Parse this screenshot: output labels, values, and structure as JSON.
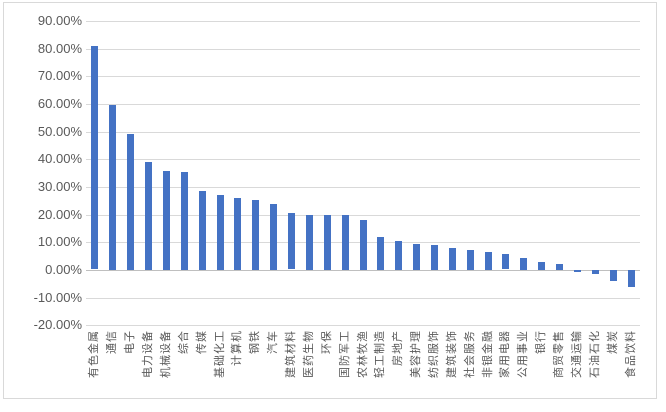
{
  "chart_data": {
    "type": "bar",
    "title": "",
    "xlabel": "",
    "ylabel": "",
    "unit": "%",
    "grid": true,
    "legend": false,
    "ylim": [
      -20,
      90
    ],
    "ytick_values": [
      90,
      80,
      70,
      60,
      50,
      40,
      30,
      20,
      10,
      0,
      -10,
      -20
    ],
    "ytick_labels": [
      "90.00%",
      "80.00%",
      "70.00%",
      "60.00%",
      "50.00%",
      "40.00%",
      "30.00%",
      "20.00%",
      "10.00%",
      "0.00%",
      "-10.00%",
      "-20.00%"
    ],
    "categories": [
      "有色金属",
      "通信",
      "电子",
      "电力设备",
      "机械设备",
      "综合",
      "传媒",
      "基础化工",
      "计算机",
      "钢铁",
      "汽车",
      "建筑材料",
      "医药生物",
      "环保",
      "国防军工",
      "农林牧渔",
      "轻工制造",
      "房地产",
      "美容护理",
      "纺织服饰",
      "建筑装饰",
      "社会服务",
      "非银金融",
      "家用电器",
      "公用事业",
      "银行",
      "商贸零售",
      "交通运输",
      "石油石化",
      "煤炭",
      "食品饮料"
    ],
    "values": [
      80.8,
      59.5,
      49.2,
      38.9,
      35.9,
      35.3,
      28.6,
      27.0,
      26.1,
      25.3,
      23.8,
      20.4,
      20.0,
      19.9,
      19.8,
      18.0,
      11.8,
      10.6,
      9.4,
      9.1,
      8.0,
      7.2,
      6.6,
      5.6,
      4.4,
      2.8,
      2.0,
      -0.7,
      -1.5,
      -4.0,
      -6.0
    ],
    "colors": {
      "bar": "#4472C4",
      "gridline": "#D9D9D9",
      "zero_axis_line": "#BFBFBF",
      "axis_text": "#595959",
      "frame_border": "#D9D9D9",
      "background": "#FFFFFF"
    }
  }
}
